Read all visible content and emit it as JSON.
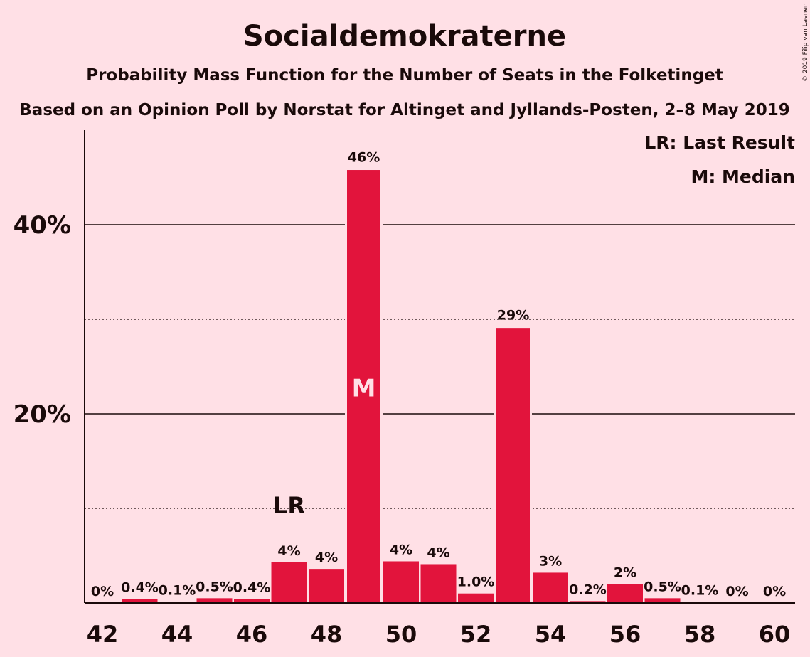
{
  "chart_data": {
    "type": "bar",
    "title": "Socialdemokraterne",
    "subtitle": "Probability Mass Function for the Number of Seats in the Folketinget",
    "subtitle2": "Based on an Opinion Poll by Norstat for Altinget and Jyllands-Posten, 2–8 May 2019",
    "copyright": "© 2019 Filip van Laenen",
    "legend": [
      "LR: Last Result",
      "M: Median"
    ],
    "x": [
      42,
      43,
      44,
      45,
      46,
      47,
      48,
      49,
      50,
      51,
      52,
      53,
      54,
      55,
      56,
      57,
      58,
      59,
      60
    ],
    "values": [
      0,
      0.4,
      0.1,
      0.5,
      0.4,
      4.3,
      3.6,
      45.9,
      4.4,
      4.1,
      1.0,
      29.2,
      3.2,
      0.2,
      2.0,
      0.5,
      0.1,
      0,
      0
    ],
    "labels": [
      "0%",
      "0.4%",
      "0.1%",
      "0.5%",
      "0.4%",
      "4%",
      "4%",
      "46%",
      "4%",
      "4%",
      "1.0%",
      "29%",
      "3%",
      "0.2%",
      "2%",
      "0.5%",
      "0.1%",
      "0%",
      "0%"
    ],
    "xticks": [
      42,
      44,
      46,
      48,
      50,
      52,
      54,
      56,
      58,
      60
    ],
    "yticks": [
      {
        "value": 20,
        "label": "20%"
      },
      {
        "value": 40,
        "label": "40%"
      }
    ],
    "ylim": [
      0,
      50
    ],
    "last_result": {
      "x": 47,
      "label": "LR"
    },
    "median": {
      "x": 49,
      "label": "M"
    },
    "colors": {
      "bar": "#E2143C",
      "background": "#FFE0E6",
      "text": "#1a0a0a"
    }
  }
}
